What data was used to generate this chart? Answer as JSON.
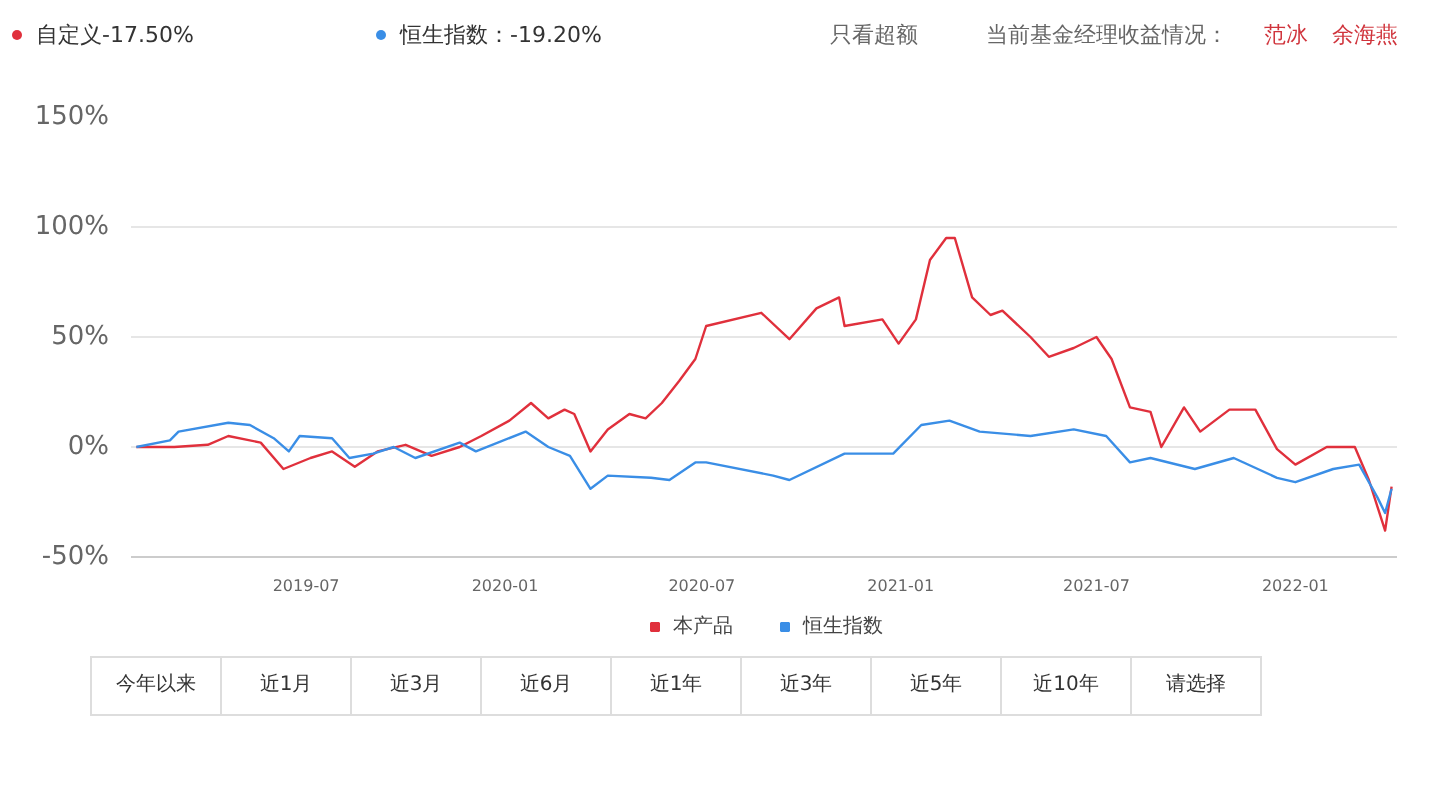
{
  "chart_data": {
    "type": "line",
    "xlim": [
      "2019-01-20",
      "2022-04-05"
    ],
    "ylim": [
      -50,
      150
    ],
    "xticks": [
      "2019-07",
      "2020-01",
      "2020-07",
      "2021-01",
      "2021-07",
      "2022-01"
    ],
    "yticks": [
      {
        "value": -50,
        "label": "-50%"
      },
      {
        "value": 0,
        "label": "0%"
      },
      {
        "value": 50,
        "label": "50%"
      },
      {
        "value": 100,
        "label": "100%"
      },
      {
        "value": 150,
        "label": "150%"
      }
    ],
    "grid": "y",
    "legend": "bottom",
    "marker": "none",
    "line_style": "solid",
    "series": [
      {
        "name": "本产品",
        "color": "#e0303c",
        "x": [
          "2019-01-25",
          "2019-03-01",
          "2019-04-01",
          "2019-04-20",
          "2019-05-20",
          "2019-06-10",
          "2019-07-05",
          "2019-07-25",
          "2019-08-15",
          "2019-09-05",
          "2019-10-01",
          "2019-10-25",
          "2019-11-20",
          "2019-12-10",
          "2020-01-05",
          "2020-01-25",
          "2020-02-10",
          "2020-02-25",
          "2020-03-05",
          "2020-03-20",
          "2020-04-05",
          "2020-04-25",
          "2020-05-10",
          "2020-05-25",
          "2020-06-10",
          "2020-06-25",
          "2020-07-05",
          "2020-08-25",
          "2020-09-20",
          "2020-10-15",
          "2020-11-05",
          "2020-11-10",
          "2020-12-15",
          "2020-12-30",
          "2021-01-15",
          "2021-01-28",
          "2021-02-12",
          "2021-02-20",
          "2021-03-08",
          "2021-03-25",
          "2021-04-05",
          "2021-05-01",
          "2021-05-18",
          "2021-06-10",
          "2021-07-01",
          "2021-07-15",
          "2021-08-01",
          "2021-08-20",
          "2021-08-30",
          "2021-09-20",
          "2021-10-05",
          "2021-11-01",
          "2021-11-25",
          "2021-12-15",
          "2022-01-01",
          "2022-01-30",
          "2022-02-25",
          "2022-03-10",
          "2022-03-25",
          "2022-03-31"
        ],
        "values": [
          0,
          0,
          1,
          5,
          2,
          -10,
          -5,
          -2,
          -9,
          -2,
          1,
          -4,
          0,
          5,
          12,
          20,
          13,
          17,
          15,
          -2,
          8,
          15,
          13,
          20,
          30,
          40,
          55,
          61,
          49,
          63,
          68,
          55,
          58,
          47,
          58,
          85,
          95,
          95,
          68,
          60,
          62,
          50,
          41,
          45,
          50,
          40,
          18,
          16,
          0,
          18,
          7,
          17,
          17,
          -1,
          -8,
          0,
          0,
          -15,
          -38,
          -18
        ]
      },
      {
        "name": "恒生指数",
        "color": "#3a8ee6",
        "x": [
          "2019-01-25",
          "2019-02-25",
          "2019-03-05",
          "2019-04-20",
          "2019-05-10",
          "2019-06-01",
          "2019-06-15",
          "2019-06-25",
          "2019-07-25",
          "2019-08-10",
          "2019-09-01",
          "2019-09-20",
          "2019-10-10",
          "2019-11-20",
          "2019-12-05",
          "2020-01-20",
          "2020-02-10",
          "2020-03-01",
          "2020-03-20",
          "2020-04-05",
          "2020-05-15",
          "2020-06-01",
          "2020-06-25",
          "2020-07-05",
          "2020-09-05",
          "2020-09-20",
          "2020-11-10",
          "2020-12-25",
          "2021-01-20",
          "2021-02-15",
          "2021-03-15",
          "2021-05-01",
          "2021-06-10",
          "2021-07-10",
          "2021-08-01",
          "2021-08-20",
          "2021-09-30",
          "2021-11-05",
          "2021-12-15",
          "2022-01-01",
          "2022-02-05",
          "2022-03-01",
          "2022-03-18",
          "2022-03-25",
          "2022-03-31"
        ],
        "values": [
          0,
          3,
          7,
          11,
          10,
          4,
          -2,
          5,
          4,
          -5,
          -3,
          0,
          -5,
          2,
          -2,
          7,
          0,
          -4,
          -19,
          -13,
          -14,
          -15,
          -7,
          -7,
          -13,
          -15,
          -3,
          -3,
          10,
          12,
          7,
          5,
          8,
          5,
          -7,
          -5,
          -10,
          -5,
          -14,
          -16,
          -10,
          -8,
          -23,
          -30,
          -19
        ]
      }
    ],
    "annotations": [
      "自定义-17.50%",
      "恒生指数：-19.20%",
      "只看超额",
      "当前基金经理收益情况：",
      "范冰",
      "余海燕",
      "今年以来",
      "近1月",
      "近3月",
      "近6月",
      "近1年",
      "近3年",
      "近5年",
      "近10年",
      "请选择"
    ]
  }
}
